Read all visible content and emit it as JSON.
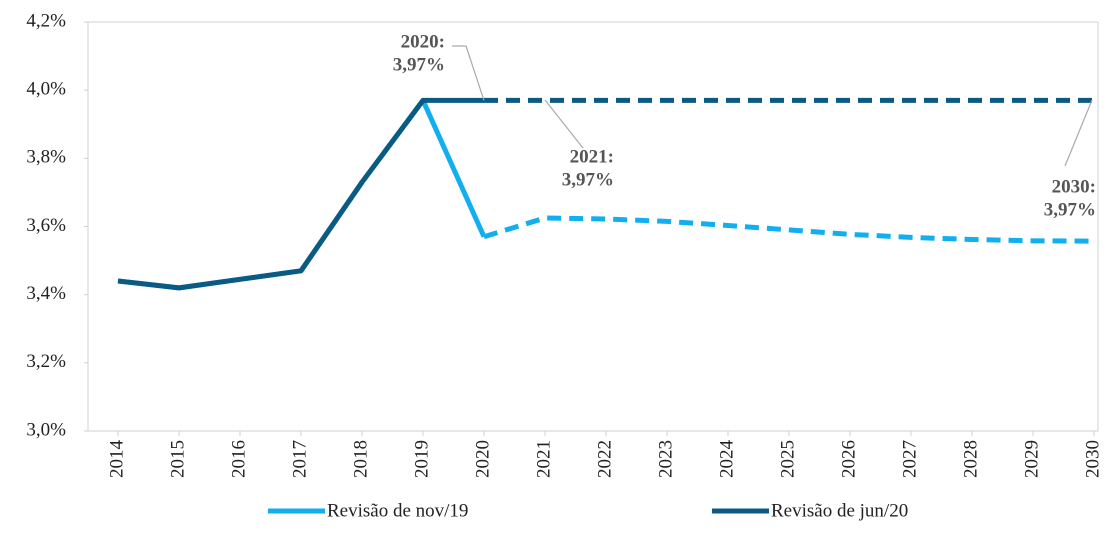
{
  "chart_data": {
    "type": "line",
    "categories": [
      "2014",
      "2015",
      "2016",
      "2017",
      "2018",
      "2019",
      "2020",
      "2021",
      "2022",
      "2023",
      "2024",
      "2025",
      "2026",
      "2027",
      "2028",
      "2029",
      "2030"
    ],
    "dashed_from": "2020",
    "series": [
      {
        "name": "Revisão de nov/19",
        "color": "#12aff0",
        "values": [
          3.44,
          3.42,
          3.445,
          3.47,
          3.73,
          3.97,
          3.57,
          3.625,
          3.622,
          3.615,
          3.603,
          3.59,
          3.577,
          3.568,
          3.562,
          3.558,
          3.557
        ]
      },
      {
        "name": "Revisão de jun/20",
        "color": "#0a5a84",
        "values": [
          3.44,
          3.42,
          3.445,
          3.47,
          3.73,
          3.97,
          3.97,
          3.97,
          3.97,
          3.97,
          3.97,
          3.97,
          3.97,
          3.97,
          3.97,
          3.97,
          3.97
        ]
      }
    ],
    "ylim": [
      3.0,
      4.2
    ],
    "yticks": [
      {
        "value": 3.0,
        "label": "3,0%"
      },
      {
        "value": 3.2,
        "label": "3,2%"
      },
      {
        "value": 3.4,
        "label": "3,4%"
      },
      {
        "value": 3.6,
        "label": "3,6%"
      },
      {
        "value": 3.8,
        "label": "3,8%"
      },
      {
        "value": 4.0,
        "label": "4,0%"
      },
      {
        "value": 4.2,
        "label": "4,2%"
      }
    ],
    "annotations": [
      {
        "x": "2020",
        "y": 3.97,
        "text": [
          "2020:",
          "3,97%"
        ]
      },
      {
        "x": "2021",
        "y": 3.97,
        "text": [
          "2021:",
          "3,97%"
        ]
      },
      {
        "x": "2030",
        "y": 3.97,
        "text": [
          "2030:",
          "3,97%"
        ]
      }
    ]
  }
}
